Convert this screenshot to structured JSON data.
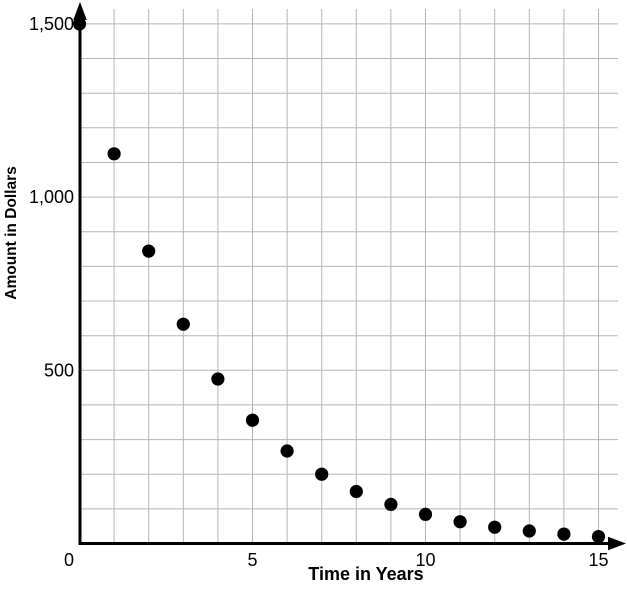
{
  "chart_data": {
    "type": "scatter",
    "title": "",
    "xlabel": "Time in Years",
    "ylabel": "Amount in Dollars",
    "x": [
      0,
      1,
      2,
      3,
      4,
      5,
      6,
      7,
      8,
      9,
      10,
      11,
      12,
      13,
      14,
      15
    ],
    "y": [
      1500,
      1125,
      844,
      633,
      475,
      356,
      267,
      200,
      150,
      113,
      84,
      63,
      47,
      36,
      27,
      20
    ],
    "xlim": [
      0,
      15
    ],
    "ylim": [
      0,
      1500
    ],
    "x_grid_interval": 1,
    "y_grid_interval": 100,
    "grid": "on",
    "legend": "none",
    "x_ticks": {
      "values": [
        0,
        5,
        10,
        15
      ],
      "labels": [
        "0",
        "5",
        "10",
        "15"
      ]
    },
    "y_ticks": {
      "values": [
        500,
        1000,
        1500
      ],
      "labels": [
        "500",
        "1,000",
        "1,500"
      ]
    },
    "colors": {
      "marker": "#000000",
      "grid": "#b5b5b5",
      "axis": "#000000",
      "text": "#000000",
      "background": "#ffffff"
    }
  }
}
